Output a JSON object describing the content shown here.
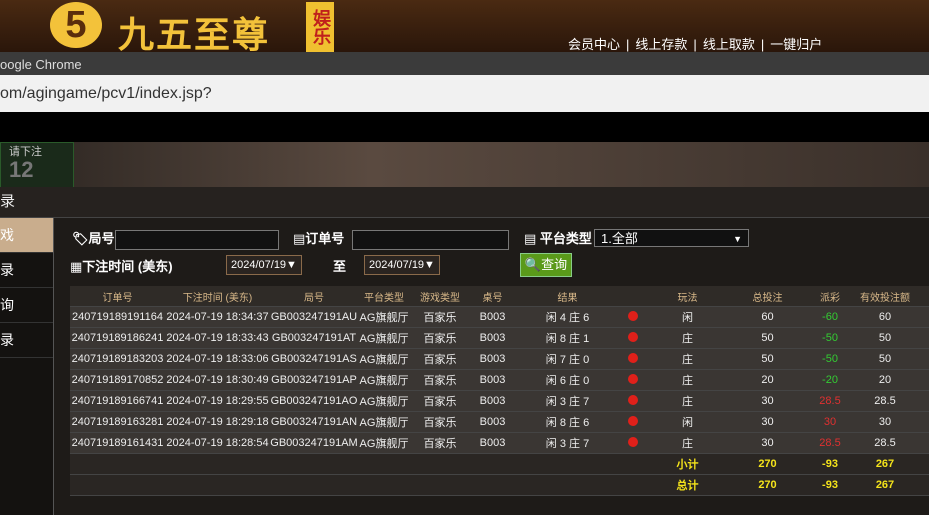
{
  "logo": {
    "name": "九五至尊",
    "badge": "娱乐"
  },
  "nav": {
    "links": [
      "会员中心",
      "线上存款",
      "线上取款",
      "一键归户"
    ],
    "separator": "|"
  },
  "browser": {
    "title": "oogle Chrome",
    "url": "om/agingame/pcv1/index.jsp?"
  },
  "game": {
    "status": "请下注",
    "countdown": "12"
  },
  "panel": {
    "title": "录",
    "menu": [
      "戏",
      "录",
      "询",
      "录"
    ]
  },
  "filters": {
    "round": "局号",
    "order": "订单号",
    "platform": "平台类型",
    "platform_value": "1.全部",
    "time": "下注时间 (美东)",
    "date_from": "2024/07/19▼",
    "to": "至",
    "date_to": "2024/07/19▼",
    "search": "查询"
  },
  "table": {
    "headers": [
      "订单号",
      "下注时间 (美东)",
      "局号",
      "平台类型",
      "游戏类型",
      "桌号",
      "结果",
      "玩法",
      "总投注",
      "派彩",
      "有效投注额"
    ],
    "rows": [
      [
        "240719189191164",
        "2024-07-19 18:34:37",
        "GB003247191AU",
        "AG旗舰厅",
        "百家乐",
        "B003",
        "闲 4 庄 6",
        "闲",
        60,
        -60,
        60
      ],
      [
        "240719189186241",
        "2024-07-19 18:33:43",
        "GB003247191AT",
        "AG旗舰厅",
        "百家乐",
        "B003",
        "闲 8 庄 1",
        "庄",
        50,
        -50,
        50
      ],
      [
        "240719189183203",
        "2024-07-19 18:33:06",
        "GB003247191AS",
        "AG旗舰厅",
        "百家乐",
        "B003",
        "闲 7 庄 0",
        "庄",
        50,
        -50,
        50
      ],
      [
        "240719189170852",
        "2024-07-19 18:30:49",
        "GB003247191AP",
        "AG旗舰厅",
        "百家乐",
        "B003",
        "闲 6 庄 0",
        "庄",
        20,
        -20,
        20
      ],
      [
        "240719189166741",
        "2024-07-19 18:29:55",
        "GB003247191AO",
        "AG旗舰厅",
        "百家乐",
        "B003",
        "闲 3 庄 7",
        "庄",
        30,
        28.5,
        28.5
      ],
      [
        "240719189163281",
        "2024-07-19 18:29:18",
        "GB003247191AN",
        "AG旗舰厅",
        "百家乐",
        "B003",
        "闲 8 庄 6",
        "闲",
        30,
        30,
        30
      ],
      [
        "240719189161431",
        "2024-07-19 18:28:54",
        "GB003247191AM",
        "AG旗舰厅",
        "百家乐",
        "B003",
        "闲 3 庄 7",
        "庄",
        30,
        28.5,
        28.5
      ]
    ],
    "totals": [
      [
        "小计",
        270,
        -93,
        267
      ],
      [
        "总计",
        270,
        -93,
        267
      ]
    ]
  }
}
